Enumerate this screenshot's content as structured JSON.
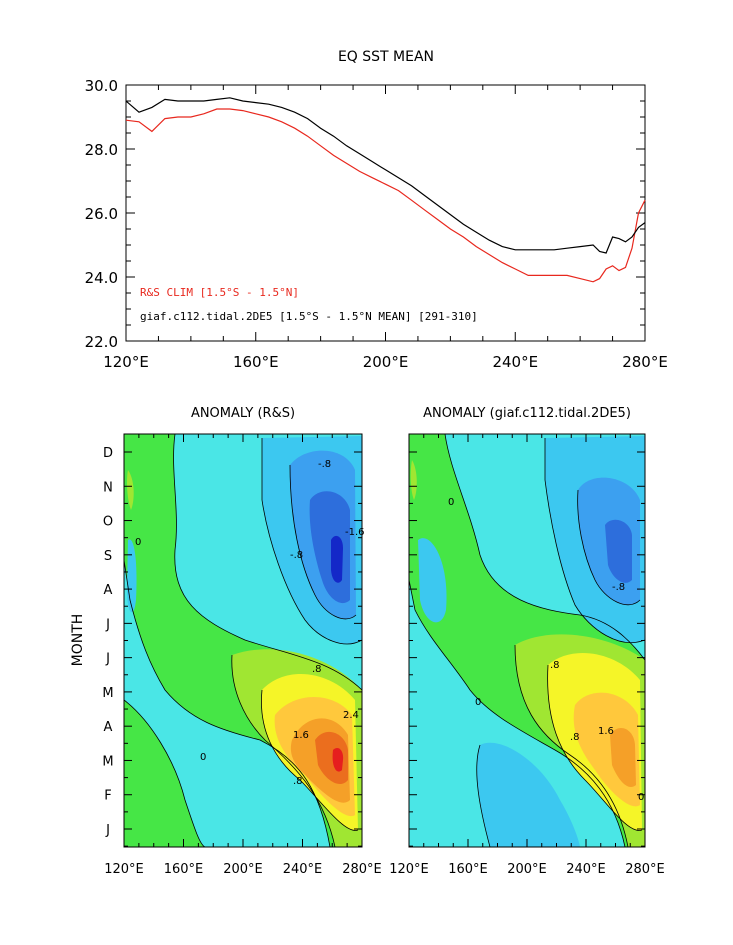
{
  "figure": {
    "top_title": "EQ SST MEAN",
    "left_title": "ANOMALY (R&S)",
    "right_title": "ANOMALY (giaf.c112.tidal.2DE5)",
    "month_axis_label": "MONTH"
  },
  "chart_data": [
    {
      "type": "line",
      "title": "EQ SST MEAN",
      "x_ticks": [
        "120°E",
        "160°E",
        "200°E",
        "240°E",
        "280°E"
      ],
      "y_ticks": [
        "22.0",
        "24.0",
        "26.0",
        "28.0",
        "30.0"
      ],
      "xlim": [
        120,
        280
      ],
      "ylim": [
        22,
        30
      ],
      "grid": false,
      "legend_placement": "lower-left",
      "x": [
        120,
        124,
        128,
        132,
        136,
        140,
        144,
        148,
        152,
        156,
        160,
        164,
        168,
        172,
        176,
        180,
        184,
        188,
        192,
        196,
        200,
        204,
        208,
        212,
        216,
        220,
        224,
        228,
        232,
        236,
        240,
        244,
        248,
        252,
        256,
        260,
        264,
        266,
        268,
        270,
        272,
        274,
        276,
        278,
        280
      ],
      "series": [
        {
          "name": "R&S CLIM [1.5°S - 1.5°N]",
          "color": "#e8281e",
          "values": [
            28.9,
            28.85,
            28.55,
            28.95,
            29.0,
            29.0,
            29.1,
            29.25,
            29.25,
            29.2,
            29.1,
            29.0,
            28.85,
            28.65,
            28.4,
            28.1,
            27.8,
            27.55,
            27.3,
            27.1,
            26.9,
            26.7,
            26.4,
            26.1,
            25.8,
            25.5,
            25.25,
            24.95,
            24.7,
            24.45,
            24.25,
            24.05,
            24.05,
            24.05,
            24.05,
            23.95,
            23.85,
            23.95,
            24.25,
            24.35,
            24.2,
            24.3,
            24.9,
            26.0,
            26.4
          ]
        },
        {
          "name": "giaf.c112.tidal.2DE5 [1.5°S - 1.5°N MEAN] [291-310]",
          "color": "#000000",
          "values": [
            29.5,
            29.15,
            29.3,
            29.55,
            29.5,
            29.5,
            29.5,
            29.55,
            29.6,
            29.5,
            29.45,
            29.4,
            29.3,
            29.15,
            28.95,
            28.65,
            28.4,
            28.1,
            27.85,
            27.6,
            27.35,
            27.1,
            26.85,
            26.55,
            26.25,
            25.95,
            25.65,
            25.4,
            25.15,
            24.95,
            24.85,
            24.85,
            24.85,
            24.85,
            24.9,
            24.95,
            25.0,
            24.8,
            24.75,
            25.25,
            25.2,
            25.1,
            25.25,
            25.55,
            25.7
          ]
        }
      ]
    },
    {
      "type": "heatmap",
      "title": "ANOMALY (R&S)",
      "ylabel": "MONTH",
      "x_ticks": [
        "120°E",
        "160°E",
        "200°E",
        "240°E",
        "280°E"
      ],
      "y_ticks": [
        "J",
        "F",
        "M",
        "A",
        "M",
        "J",
        "J",
        "A",
        "S",
        "O",
        "N",
        "D"
      ],
      "xlim": [
        120,
        280
      ],
      "contour_labels": [
        "-.8",
        "-1.6",
        "-.8",
        "0",
        ".8",
        "1.6",
        "2.4",
        ".8",
        "0"
      ],
      "anomaly_features": [
        {
          "sign": "warm",
          "center_lon": 265,
          "center_month": "M",
          "peak": 2.4
        },
        {
          "sign": "cold",
          "center_lon": 265,
          "center_month": "S",
          "peak": -2.0
        }
      ]
    },
    {
      "type": "heatmap",
      "title": "ANOMALY (giaf.c112.tidal.2DE5)",
      "x_ticks": [
        "120°E",
        "160°E",
        "200°E",
        "240°E",
        "280°E"
      ],
      "y_ticks": [
        "J",
        "F",
        "M",
        "A",
        "M",
        "J",
        "J",
        "A",
        "S",
        "O",
        "N",
        "D"
      ],
      "xlim": [
        120,
        280
      ],
      "contour_labels": [
        "-.8",
        "0",
        "0",
        ".8",
        "1.6",
        ".8",
        "0"
      ],
      "anomaly_features": [
        {
          "sign": "warm",
          "center_lon": 265,
          "center_month": "A",
          "peak": 1.6
        },
        {
          "sign": "cold",
          "center_lon": 265,
          "center_month": "S",
          "peak": -1.6
        }
      ]
    }
  ]
}
